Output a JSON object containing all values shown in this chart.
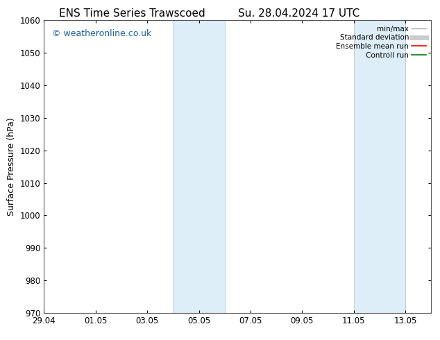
{
  "title_left": "ENS Time Series Trawscoed",
  "title_right": "Su. 28.04.2024 17 UTC",
  "ylabel": "Surface Pressure (hPa)",
  "ylim": [
    970,
    1060
  ],
  "yticks": [
    970,
    980,
    990,
    1000,
    1010,
    1020,
    1030,
    1040,
    1050,
    1060
  ],
  "xtick_labels": [
    "29.04",
    "01.05",
    "03.05",
    "05.05",
    "07.05",
    "09.05",
    "11.05",
    "13.05"
  ],
  "xtick_days": [
    0,
    2,
    4,
    6,
    8,
    10,
    12,
    14
  ],
  "xlim": [
    0,
    15
  ],
  "shaded_bands": [
    {
      "xstart": 5,
      "xend": 7
    },
    {
      "xstart": 12,
      "xend": 14
    }
  ],
  "shaded_color": "#ddeef8",
  "shaded_edge_color": "#aaccdd",
  "watermark": "© weatheronline.co.uk",
  "watermark_color": "#1a5fa8",
  "legend_entries": [
    {
      "label": "min/max",
      "color": "#aaaaaa",
      "lw": 1.0
    },
    {
      "label": "Standard deviation",
      "color": "#cccccc",
      "lw": 5
    },
    {
      "label": "Ensemble mean run",
      "color": "red",
      "lw": 1.2
    },
    {
      "label": "Controll run",
      "color": "green",
      "lw": 1.2
    }
  ],
  "bg_color": "#ffffff",
  "spine_color": "#555555",
  "title_fontsize": 11,
  "axis_label_fontsize": 9,
  "tick_fontsize": 8.5,
  "watermark_fontsize": 9,
  "legend_fontsize": 7.5
}
